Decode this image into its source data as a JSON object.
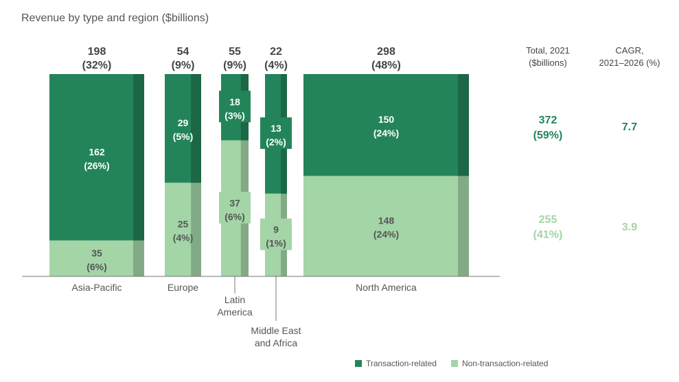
{
  "chart_data": {
    "type": "bar",
    "subtype": "marimekko",
    "title": "Revenue by type and region ($billions)",
    "colors": {
      "transaction": "#23845a",
      "non_transaction": "#a3d5a7",
      "text_dark": "#444444",
      "text_green": "#23845a",
      "text_light": "#a3d5a7"
    },
    "regions": [
      {
        "name": "Asia-Pacific",
        "total": "198",
        "total_pct": "(32%)",
        "transaction": 162,
        "transaction_label": "162",
        "transaction_pct": "(26%)",
        "non_transaction": 35,
        "non_transaction_label": "35",
        "non_transaction_pct": "(6%)"
      },
      {
        "name": "Europe",
        "total": "54",
        "total_pct": "(9%)",
        "transaction": 29,
        "transaction_label": "29",
        "transaction_pct": "(5%)",
        "non_transaction": 25,
        "non_transaction_label": "25",
        "non_transaction_pct": "(4%)"
      },
      {
        "name": "Latin America",
        "name_lines": [
          "Latin",
          "America"
        ],
        "total": "55",
        "total_pct": "(9%)",
        "transaction": 18,
        "transaction_label": "18",
        "transaction_pct": "(3%)",
        "non_transaction": 37,
        "non_transaction_label": "37",
        "non_transaction_pct": "(6%)"
      },
      {
        "name": "Middle East and Africa",
        "name_lines": [
          "Middle East",
          "and Africa"
        ],
        "total": "22",
        "total_pct": "(4%)",
        "transaction": 13,
        "transaction_label": "13",
        "transaction_pct": "(2%)",
        "non_transaction": 9,
        "non_transaction_label": "9",
        "non_transaction_pct": "(1%)"
      },
      {
        "name": "North America",
        "total": "298",
        "total_pct": "(48%)",
        "transaction": 150,
        "transaction_label": "150",
        "transaction_pct": "(24%)",
        "non_transaction": 148,
        "non_transaction_label": "148",
        "non_transaction_pct": "(24%)"
      }
    ],
    "summary": {
      "total_header": [
        "Total, 2021",
        "($billions)"
      ],
      "cagr_header": [
        "CAGR,",
        "2021–2026 (%)"
      ],
      "transaction_total": "372",
      "transaction_total_pct": "(59%)",
      "transaction_cagr": "7.7",
      "non_transaction_total": "255",
      "non_transaction_total_pct": "(41%)",
      "non_transaction_cagr": "3.9"
    },
    "legend": [
      {
        "label": "Transaction-related",
        "color": "#23845a"
      },
      {
        "label": "Non-transaction-related",
        "color": "#a3d5a7"
      }
    ]
  }
}
